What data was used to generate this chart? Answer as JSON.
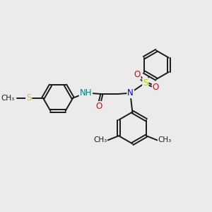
{
  "bg_color": "#ebebeb",
  "bond_color": "#1a1a1a",
  "bond_width": 1.4,
  "atom_colors": {
    "N": "#0000ee",
    "O": "#ee0000",
    "S_yellow": "#cccc00",
    "H": "#008080"
  },
  "font_size": 8.5,
  "xlim": [
    0,
    10
  ],
  "ylim": [
    0,
    10
  ]
}
